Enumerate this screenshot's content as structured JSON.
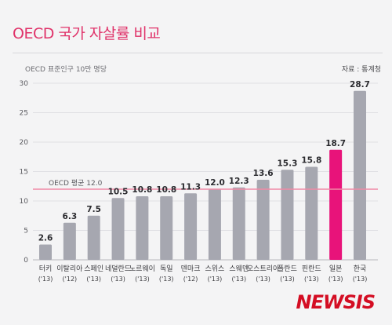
{
  "title": "OECD 국가 자살률 비교",
  "subtitle": "OECD 표준인구 10만 명당",
  "source": "자료 : 통계청",
  "logo": "NEWSIS",
  "chart_data": {
    "type": "bar",
    "categories": [
      "터키",
      "이탈리아",
      "스페인",
      "네덜란드",
      "노르웨이",
      "독일",
      "덴마크",
      "스위스",
      "스웨덴",
      "오스트리아",
      "폴란드",
      "핀란드",
      "일본",
      "한국"
    ],
    "years": [
      "('13)",
      "('12)",
      "('13)",
      "('13)",
      "('13)",
      "('13)",
      "('12)",
      "('13)",
      "('13)",
      "('13)",
      "('13)",
      "('13)",
      "('13)",
      "('13)"
    ],
    "values": [
      2.6,
      6.3,
      7.5,
      10.5,
      10.8,
      10.8,
      11.3,
      12.0,
      12.3,
      13.6,
      15.3,
      15.8,
      18.7,
      28.7
    ],
    "value_labels": [
      "2.6",
      "6.3",
      "7.5",
      "10.5",
      "10.8",
      "10.8",
      "11.3",
      "12.0",
      "12.3",
      "13.6",
      "15.3",
      "15.8",
      "18.7",
      "28.7"
    ],
    "yticks": [
      0,
      5,
      10,
      15,
      20,
      25,
      30
    ],
    "ylim": [
      0,
      30
    ],
    "reference_line": {
      "label": "OECD 평균 12.0",
      "value": 12.0
    },
    "highlight_index": 12,
    "colors": {
      "bar": "#a6a7b0",
      "highlight": "#e8137a",
      "reference": "#f08aa6",
      "title": "#e0336a"
    }
  }
}
